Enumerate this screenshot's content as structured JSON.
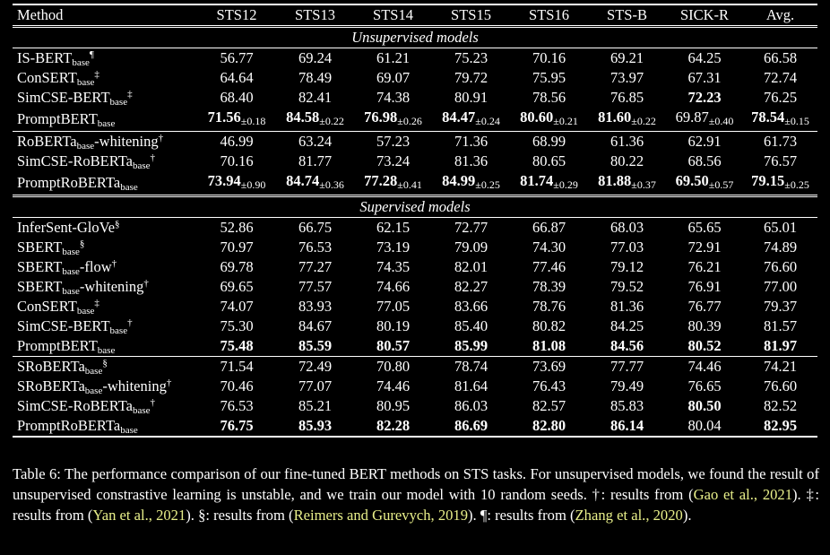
{
  "header": [
    "Method",
    "STS12",
    "STS13",
    "STS14",
    "STS15",
    "STS16",
    "STS-B",
    "SICK-R",
    "Avg."
  ],
  "sections": [
    {
      "title": "Unsupervised models",
      "groups": [
        [
          {
            "name": "IS-BERT",
            "sub": "base",
            "after": "",
            "mark": "¶",
            "cells": [
              {
                "v": "56.77"
              },
              {
                "v": "69.24"
              },
              {
                "v": "61.21"
              },
              {
                "v": "75.23"
              },
              {
                "v": "70.16"
              },
              {
                "v": "69.21"
              },
              {
                "v": "64.25"
              },
              {
                "v": "66.58"
              }
            ]
          },
          {
            "name": "ConSERT",
            "sub": "base",
            "after": "",
            "mark": "‡",
            "cells": [
              {
                "v": "64.64"
              },
              {
                "v": "78.49"
              },
              {
                "v": "69.07"
              },
              {
                "v": "79.72"
              },
              {
                "v": "75.95"
              },
              {
                "v": "73.97"
              },
              {
                "v": "67.31"
              },
              {
                "v": "72.74"
              }
            ]
          },
          {
            "name": "SimCSE-BERT",
            "sub": "base",
            "after": "",
            "mark": "‡",
            "cells": [
              {
                "v": "68.40"
              },
              {
                "v": "82.41"
              },
              {
                "v": "74.38"
              },
              {
                "v": "80.91"
              },
              {
                "v": "78.56"
              },
              {
                "v": "76.85"
              },
              {
                "v": "72.23",
                "b": true
              },
              {
                "v": "76.25"
              }
            ]
          },
          {
            "name": "PromptBERT",
            "sub": "base",
            "after": "",
            "mark": "",
            "cells": [
              {
                "v": "71.56",
                "b": true,
                "s": "±0.18"
              },
              {
                "v": "84.58",
                "b": true,
                "s": "±0.22"
              },
              {
                "v": "76.98",
                "b": true,
                "s": "±0.26"
              },
              {
                "v": "84.47",
                "b": true,
                "s": "±0.24"
              },
              {
                "v": "80.60",
                "b": true,
                "s": "±0.21"
              },
              {
                "v": "81.60",
                "b": true,
                "s": "±0.22"
              },
              {
                "v": "69.87",
                "s": "±0.40"
              },
              {
                "v": "78.54",
                "b": true,
                "s": "±0.15"
              }
            ]
          }
        ],
        [
          {
            "name": "RoBERTa",
            "sub": "base",
            "after": "-whitening",
            "mark": "†",
            "cells": [
              {
                "v": "46.99"
              },
              {
                "v": "63.24"
              },
              {
                "v": "57.23"
              },
              {
                "v": "71.36"
              },
              {
                "v": "68.99"
              },
              {
                "v": "61.36"
              },
              {
                "v": "62.91"
              },
              {
                "v": "61.73"
              }
            ]
          },
          {
            "name": "SimCSE-RoBERTa",
            "sub": "base",
            "after": "",
            "mark": "†",
            "cells": [
              {
                "v": "70.16"
              },
              {
                "v": "81.77"
              },
              {
                "v": "73.24"
              },
              {
                "v": "81.36"
              },
              {
                "v": "80.65"
              },
              {
                "v": "80.22"
              },
              {
                "v": "68.56"
              },
              {
                "v": "76.57"
              }
            ]
          },
          {
            "name": "PromptRoBERTa",
            "sub": "base",
            "after": "",
            "mark": "",
            "cells": [
              {
                "v": "73.94",
                "b": true,
                "s": "±0.90"
              },
              {
                "v": "84.74",
                "b": true,
                "s": "±0.36"
              },
              {
                "v": "77.28",
                "b": true,
                "s": "±0.41"
              },
              {
                "v": "84.99",
                "b": true,
                "s": "±0.25"
              },
              {
                "v": "81.74",
                "b": true,
                "s": "±0.29"
              },
              {
                "v": "81.88",
                "b": true,
                "s": "±0.37"
              },
              {
                "v": "69.50",
                "b": true,
                "s": "±0.57"
              },
              {
                "v": "79.15",
                "b": true,
                "s": "±0.25"
              }
            ]
          }
        ]
      ]
    },
    {
      "title": "Supervised models",
      "groups": [
        [
          {
            "name": "InferSent-GloVe",
            "sub": "",
            "after": "",
            "mark": "§",
            "cells": [
              {
                "v": "52.86"
              },
              {
                "v": "66.75"
              },
              {
                "v": "62.15"
              },
              {
                "v": "72.77"
              },
              {
                "v": "66.87"
              },
              {
                "v": "68.03"
              },
              {
                "v": "65.65"
              },
              {
                "v": "65.01"
              }
            ]
          },
          {
            "name": "SBERT",
            "sub": "base",
            "after": "",
            "mark": "§",
            "cells": [
              {
                "v": "70.97"
              },
              {
                "v": "76.53"
              },
              {
                "v": "73.19"
              },
              {
                "v": "79.09"
              },
              {
                "v": "74.30"
              },
              {
                "v": "77.03"
              },
              {
                "v": "72.91"
              },
              {
                "v": "74.89"
              }
            ]
          },
          {
            "name": "SBERT",
            "sub": "base",
            "after": "-flow",
            "mark": "†",
            "cells": [
              {
                "v": "69.78"
              },
              {
                "v": "77.27"
              },
              {
                "v": "74.35"
              },
              {
                "v": "82.01"
              },
              {
                "v": "77.46"
              },
              {
                "v": "79.12"
              },
              {
                "v": "76.21"
              },
              {
                "v": "76.60"
              }
            ]
          },
          {
            "name": "SBERT",
            "sub": "base",
            "after": "-whitening",
            "mark": "†",
            "cells": [
              {
                "v": "69.65"
              },
              {
                "v": "77.57"
              },
              {
                "v": "74.66"
              },
              {
                "v": "82.27"
              },
              {
                "v": "78.39"
              },
              {
                "v": "79.52"
              },
              {
                "v": "76.91"
              },
              {
                "v": "77.00"
              }
            ]
          },
          {
            "name": "ConSERT",
            "sub": "base",
            "after": "",
            "mark": "‡",
            "cells": [
              {
                "v": "74.07"
              },
              {
                "v": "83.93"
              },
              {
                "v": "77.05"
              },
              {
                "v": "83.66"
              },
              {
                "v": "78.76"
              },
              {
                "v": "81.36"
              },
              {
                "v": "76.77"
              },
              {
                "v": "79.37"
              }
            ]
          },
          {
            "name": "SimCSE-BERT",
            "sub": "base",
            "after": "",
            "mark": "†",
            "cells": [
              {
                "v": "75.30"
              },
              {
                "v": "84.67"
              },
              {
                "v": "80.19"
              },
              {
                "v": "85.40"
              },
              {
                "v": "80.82"
              },
              {
                "v": "84.25"
              },
              {
                "v": "80.39"
              },
              {
                "v": "81.57"
              }
            ]
          },
          {
            "name": "PromptBERT",
            "sub": "base",
            "after": "",
            "mark": "",
            "cells": [
              {
                "v": "75.48",
                "b": true
              },
              {
                "v": "85.59",
                "b": true
              },
              {
                "v": "80.57",
                "b": true
              },
              {
                "v": "85.99",
                "b": true
              },
              {
                "v": "81.08",
                "b": true
              },
              {
                "v": "84.56",
                "b": true
              },
              {
                "v": "80.52",
                "b": true
              },
              {
                "v": "81.97",
                "b": true
              }
            ]
          }
        ],
        [
          {
            "name": "SRoBERTa",
            "sub": "base",
            "after": "",
            "mark": "§",
            "cells": [
              {
                "v": "71.54"
              },
              {
                "v": "72.49"
              },
              {
                "v": "70.80"
              },
              {
                "v": "78.74"
              },
              {
                "v": "73.69"
              },
              {
                "v": "77.77"
              },
              {
                "v": "74.46"
              },
              {
                "v": "74.21"
              }
            ]
          },
          {
            "name": "SRoBERTa",
            "sub": "base",
            "after": "-whitening",
            "mark": "†",
            "cells": [
              {
                "v": "70.46"
              },
              {
                "v": "77.07"
              },
              {
                "v": "74.46"
              },
              {
                "v": "81.64"
              },
              {
                "v": "76.43"
              },
              {
                "v": "79.49"
              },
              {
                "v": "76.65"
              },
              {
                "v": "76.60"
              }
            ]
          },
          {
            "name": "SimCSE-RoBERTa",
            "sub": "base",
            "after": "",
            "mark": "†",
            "cells": [
              {
                "v": "76.53"
              },
              {
                "v": "85.21"
              },
              {
                "v": "80.95"
              },
              {
                "v": "86.03"
              },
              {
                "v": "82.57"
              },
              {
                "v": "85.83"
              },
              {
                "v": "80.50",
                "b": true
              },
              {
                "v": "82.52"
              }
            ]
          },
          {
            "name": "PromptRoBERTa",
            "sub": "base",
            "after": "",
            "mark": "",
            "cells": [
              {
                "v": "76.75",
                "b": true
              },
              {
                "v": "85.93",
                "b": true
              },
              {
                "v": "82.28",
                "b": true
              },
              {
                "v": "86.69",
                "b": true
              },
              {
                "v": "82.80",
                "b": true
              },
              {
                "v": "86.14",
                "b": true
              },
              {
                "v": "80.04"
              },
              {
                "v": "82.95",
                "b": true
              }
            ]
          }
        ]
      ]
    }
  ],
  "caption": {
    "p1": "Table 6: The performance comparison of our fine-tuned BERT methods on STS tasks. For unsupervised models, we found the result of unsupervised constrastive learning is unstable, and we train our model with 10 random seeds. †: results from (",
    "c1": "Gao et al., 2021",
    "p2": "). ‡: results from (",
    "c2": "Yan et al., 2021",
    "p3": "). §: results from (",
    "c3": "Reimers and Gurevych, 2019",
    "p4": "). ¶: results from (",
    "c4": "Zhang et al., 2020",
    "p5": ")."
  },
  "colors": {
    "background": "#000000",
    "text": "#ffffff",
    "citation": "#e9f08a"
  }
}
